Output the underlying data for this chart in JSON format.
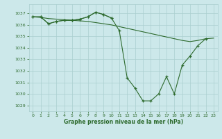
{
  "title": "Graphe pression niveau de la mer (hPa)",
  "bg_color": "#cce8ea",
  "grid_color": "#aacfcf",
  "line_color": "#2d6a2d",
  "xlim": [
    -0.5,
    23.5
  ],
  "ylim": [
    1028.5,
    1037.8
  ],
  "yticks": [
    1029,
    1030,
    1031,
    1032,
    1033,
    1034,
    1035,
    1036,
    1037
  ],
  "xticks": [
    0,
    1,
    2,
    3,
    4,
    5,
    6,
    7,
    8,
    9,
    10,
    11,
    12,
    13,
    14,
    15,
    16,
    17,
    18,
    19,
    20,
    21,
    22,
    23
  ],
  "line1_x": [
    0,
    1,
    2,
    3,
    4,
    5,
    6,
    7,
    8,
    9,
    10
  ],
  "line1_y": [
    1036.7,
    1036.7,
    1036.1,
    1036.3,
    1036.4,
    1036.4,
    1036.5,
    1036.7,
    1037.1,
    1036.9,
    1036.6
  ],
  "line2_x": [
    0,
    1,
    2,
    3,
    4,
    5,
    6,
    7,
    8,
    9,
    10,
    11,
    12,
    13,
    14,
    15,
    16,
    17,
    18,
    19,
    20,
    21,
    22,
    23
  ],
  "line2_y": [
    1036.7,
    1036.65,
    1036.55,
    1036.5,
    1036.45,
    1036.4,
    1036.35,
    1036.3,
    1036.2,
    1036.1,
    1036.0,
    1035.85,
    1035.7,
    1035.55,
    1035.4,
    1035.25,
    1035.1,
    1034.95,
    1034.8,
    1034.65,
    1034.55,
    1034.65,
    1034.8,
    1034.85
  ],
  "line3_x": [
    0,
    1,
    2,
    3,
    4,
    5,
    6,
    7,
    8,
    9,
    10,
    11,
    12,
    13,
    14,
    15,
    16,
    17,
    18,
    19,
    20,
    21,
    22
  ],
  "line3_y": [
    1036.7,
    1036.7,
    1036.1,
    1036.3,
    1036.4,
    1036.4,
    1036.5,
    1036.7,
    1037.1,
    1036.9,
    1036.6,
    1035.5,
    1031.4,
    1030.5,
    1029.4,
    1029.4,
    1030.0,
    1031.5,
    1030.0,
    1032.5,
    1033.3,
    1034.2,
    1034.8
  ]
}
